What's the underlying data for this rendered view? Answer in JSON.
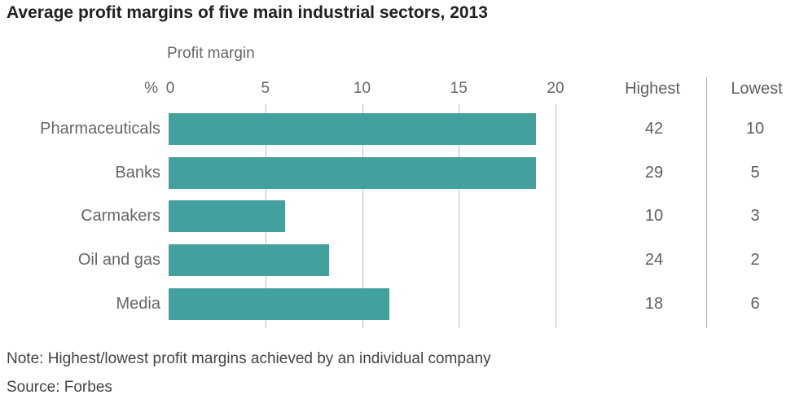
{
  "title": "Average profit margins of five main industrial sectors, 2013",
  "note": "Note: Highest/lowest profit margins achieved by an individual company",
  "source": "Source: Forbes",
  "colors": {
    "bar": "#43a19d",
    "title_text": "#212121",
    "label_text": "#666666",
    "gridline": "#bdbdbd",
    "divider": "#b0b0b0"
  },
  "chart_data": {
    "type": "bar",
    "orientation": "horizontal",
    "title": "Average profit margins of five main industrial sectors, 2013",
    "axis_title": "Profit margin",
    "unit_label": "%",
    "categories": [
      "Pharmaceuticals",
      "Banks",
      "Carmakers",
      "Oil and gas",
      "Media"
    ],
    "values": [
      19,
      19,
      6,
      8.3,
      11.4
    ],
    "xlim": [
      0,
      20
    ],
    "xticks": [
      0,
      5,
      10,
      15,
      20
    ],
    "grid": true,
    "legend": "none",
    "table": {
      "columns": [
        "Highest",
        "Lowest"
      ],
      "highest": [
        42,
        29,
        10,
        24,
        18
      ],
      "lowest": [
        10,
        5,
        3,
        2,
        6
      ]
    }
  }
}
